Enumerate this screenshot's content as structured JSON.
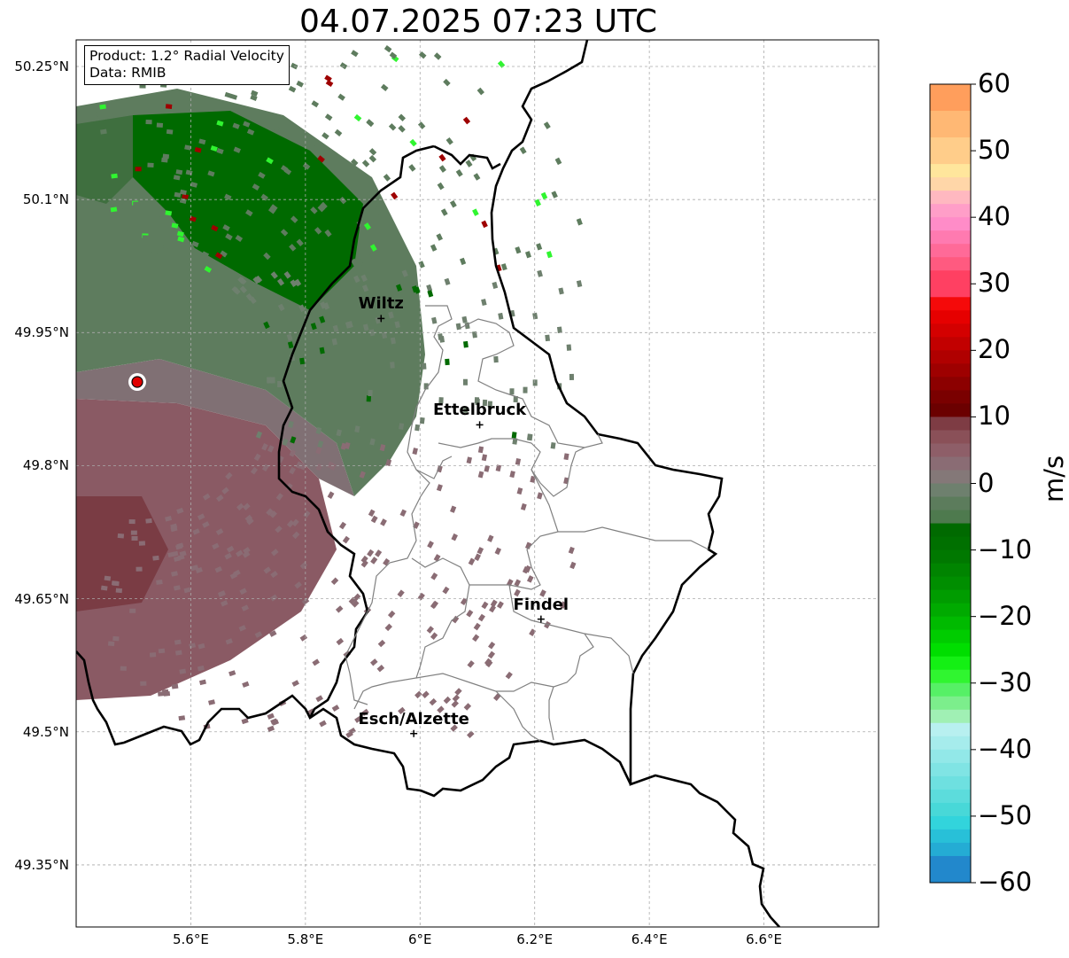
{
  "title": "04.07.2025 07:23 UTC",
  "infobox": {
    "product": "Product: 1.2° Radial Velocity",
    "data_source": "Data: RMIB"
  },
  "map": {
    "lat_range": [
      49.28,
      50.28
    ],
    "lon_range": [
      5.4,
      6.8
    ],
    "lat_ticks": [
      {
        "value": 50.25,
        "label": "50.25°N"
      },
      {
        "value": 50.1,
        "label": "50.1°N"
      },
      {
        "value": 49.95,
        "label": "49.95°N"
      },
      {
        "value": 49.8,
        "label": "49.8°N"
      },
      {
        "value": 49.65,
        "label": "49.65°N"
      },
      {
        "value": 49.5,
        "label": "49.5°N"
      },
      {
        "value": 49.35,
        "label": "49.35°N"
      }
    ],
    "lon_ticks": [
      {
        "value": 5.6,
        "label": "5.6°E"
      },
      {
        "value": 5.8,
        "label": "5.8°E"
      },
      {
        "value": 6.0,
        "label": "6°E"
      },
      {
        "value": 6.2,
        "label": "6.2°E"
      },
      {
        "value": 6.4,
        "label": "6.4°E"
      },
      {
        "value": 6.6,
        "label": "6.6°E"
      }
    ],
    "radar_site": {
      "lon": 5.505,
      "lat": 49.914
    },
    "cities": [
      {
        "name": "Wiltz",
        "lon": 5.932,
        "lat": 49.966
      },
      {
        "name": "Ettelbruck",
        "lon": 6.104,
        "lat": 49.846
      },
      {
        "name": "Findel",
        "lon": 6.211,
        "lat": 49.627
      },
      {
        "name": "Esch/Alzette",
        "lon": 5.989,
        "lat": 49.498
      }
    ]
  },
  "colorbar": {
    "unit": "m/s",
    "range": [
      -60,
      60
    ],
    "ticks": [
      {
        "value": 60,
        "label": "60"
      },
      {
        "value": 50,
        "label": "50"
      },
      {
        "value": 40,
        "label": "40"
      },
      {
        "value": 30,
        "label": "30"
      },
      {
        "value": 20,
        "label": "20"
      },
      {
        "value": 10,
        "label": "10"
      },
      {
        "value": 0,
        "label": "0"
      },
      {
        "value": -10,
        "label": "−10"
      },
      {
        "value": -20,
        "label": "−20"
      },
      {
        "value": -30,
        "label": "−30"
      },
      {
        "value": -40,
        "label": "−40"
      },
      {
        "value": -50,
        "label": "−50"
      },
      {
        "value": -60,
        "label": "−60"
      }
    ],
    "segments": [
      {
        "from": 56,
        "to": 60,
        "color": "#ff9e5c"
      },
      {
        "from": 52,
        "to": 56,
        "color": "#ffb874"
      },
      {
        "from": 48,
        "to": 52,
        "color": "#ffcd8a"
      },
      {
        "from": 46,
        "to": 48,
        "color": "#ffe69c"
      },
      {
        "from": 44,
        "to": 46,
        "color": "#ffd6a8"
      },
      {
        "from": 42,
        "to": 44,
        "color": "#ffb8c0"
      },
      {
        "from": 40,
        "to": 42,
        "color": "#ff9ec8"
      },
      {
        "from": 38,
        "to": 40,
        "color": "#ff8cc8"
      },
      {
        "from": 36,
        "to": 38,
        "color": "#ff7ab0"
      },
      {
        "from": 34,
        "to": 36,
        "color": "#ff6a98"
      },
      {
        "from": 32,
        "to": 34,
        "color": "#ff5a80"
      },
      {
        "from": 28,
        "to": 32,
        "color": "#ff4062"
      },
      {
        "from": 26,
        "to": 28,
        "color": "#f50a0a"
      },
      {
        "from": 24,
        "to": 26,
        "color": "#e60000"
      },
      {
        "from": 22,
        "to": 24,
        "color": "#d40000"
      },
      {
        "from": 20,
        "to": 22,
        "color": "#c20000"
      },
      {
        "from": 18,
        "to": 20,
        "color": "#b00000"
      },
      {
        "from": 16,
        "to": 18,
        "color": "#9e0000"
      },
      {
        "from": 14,
        "to": 16,
        "color": "#8c0000"
      },
      {
        "from": 12,
        "to": 14,
        "color": "#7a0000"
      },
      {
        "from": 10,
        "to": 12,
        "color": "#6b0000"
      },
      {
        "from": 8,
        "to": 10,
        "color": "#7e3c44"
      },
      {
        "from": 6,
        "to": 8,
        "color": "#8a5058"
      },
      {
        "from": 4,
        "to": 6,
        "color": "#8e5e68"
      },
      {
        "from": 2,
        "to": 4,
        "color": "#8a6c74"
      },
      {
        "from": 0,
        "to": 2,
        "color": "#847878"
      },
      {
        "from": -2,
        "to": 0,
        "color": "#6e806e"
      },
      {
        "from": -4,
        "to": -2,
        "color": "#5c7c5c"
      },
      {
        "from": -6,
        "to": -4,
        "color": "#4e7a4e"
      },
      {
        "from": -8,
        "to": -6,
        "color": "#006a00"
      },
      {
        "from": -10,
        "to": -8,
        "color": "#007000"
      },
      {
        "from": -12,
        "to": -10,
        "color": "#007800"
      },
      {
        "from": -14,
        "to": -12,
        "color": "#008400"
      },
      {
        "from": -16,
        "to": -14,
        "color": "#008e00"
      },
      {
        "from": -18,
        "to": -16,
        "color": "#009c00"
      },
      {
        "from": -20,
        "to": -18,
        "color": "#00aa00"
      },
      {
        "from": -22,
        "to": -20,
        "color": "#00ba00"
      },
      {
        "from": -24,
        "to": -22,
        "color": "#00cc00"
      },
      {
        "from": -26,
        "to": -24,
        "color": "#00de00"
      },
      {
        "from": -28,
        "to": -26,
        "color": "#14f014"
      },
      {
        "from": -30,
        "to": -28,
        "color": "#30f530"
      },
      {
        "from": -32,
        "to": -30,
        "color": "#56f066"
      },
      {
        "from": -34,
        "to": -32,
        "color": "#7cee8c"
      },
      {
        "from": -36,
        "to": -34,
        "color": "#a0f0b4"
      },
      {
        "from": -38,
        "to": -36,
        "color": "#b8f0f0"
      },
      {
        "from": -40,
        "to": -38,
        "color": "#a6ecec"
      },
      {
        "from": -42,
        "to": -40,
        "color": "#92e8e8"
      },
      {
        "from": -44,
        "to": -42,
        "color": "#80e4e4"
      },
      {
        "from": -46,
        "to": -44,
        "color": "#6ee0e0"
      },
      {
        "from": -48,
        "to": -46,
        "color": "#5cdcdc"
      },
      {
        "from": -50,
        "to": -48,
        "color": "#48d8d8"
      },
      {
        "from": -52,
        "to": -50,
        "color": "#32d4dc"
      },
      {
        "from": -54,
        "to": -52,
        "color": "#28c0d8"
      },
      {
        "from": -56,
        "to": -54,
        "color": "#24acd4"
      },
      {
        "from": -60,
        "to": -56,
        "color": "#2288cc"
      }
    ]
  },
  "colors": {
    "inbound_green": "#4e7a4e",
    "strong_inbound_green": "#006a00",
    "outbound_red": "#7e3c44",
    "radar_marker": "#e00000",
    "border": "#000000",
    "canton_border": "#808080"
  }
}
